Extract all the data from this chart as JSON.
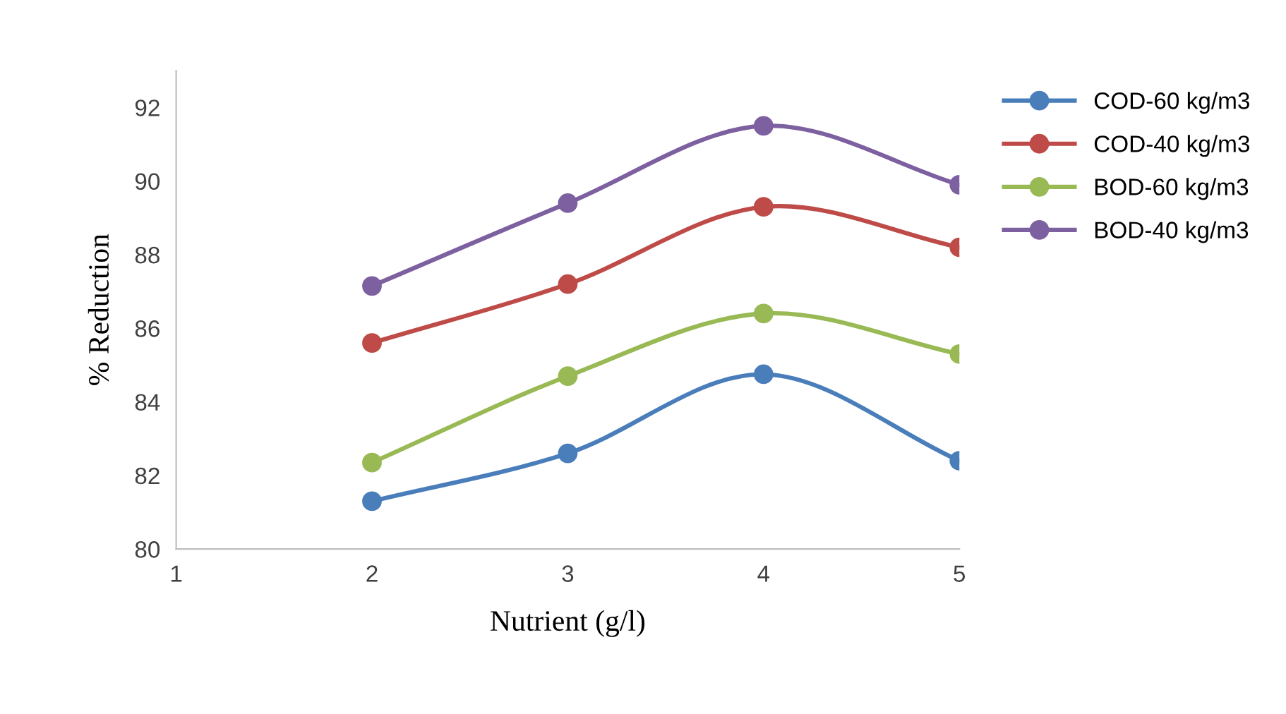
{
  "chart_data": {
    "type": "line",
    "xlabel": "Nutrient (g/l)",
    "ylabel": "% Reduction",
    "x": [
      2,
      3,
      4,
      5
    ],
    "series": [
      {
        "name": "COD-60 kg/m3",
        "color": "#4a7ebb",
        "values": [
          81.3,
          82.6,
          84.75,
          82.4
        ]
      },
      {
        "name": "COD-40 kg/m3",
        "color": "#be4b48",
        "values": [
          85.6,
          87.2,
          89.3,
          88.2
        ]
      },
      {
        "name": "BOD-60 kg/m3",
        "color": "#98b954",
        "values": [
          82.35,
          84.7,
          86.4,
          85.3
        ]
      },
      {
        "name": "BOD-40 kg/m3",
        "color": "#7d60a0",
        "values": [
          87.15,
          89.4,
          91.5,
          89.9
        ]
      }
    ],
    "xlim": [
      1,
      5
    ],
    "xticks": [
      1,
      2,
      3,
      4,
      5
    ],
    "ylim": [
      80,
      93
    ],
    "yticks": [
      80,
      82,
      84,
      86,
      88,
      90,
      92
    ],
    "grid": false,
    "legend": "right",
    "marker": "circle",
    "line_style": "solid"
  }
}
